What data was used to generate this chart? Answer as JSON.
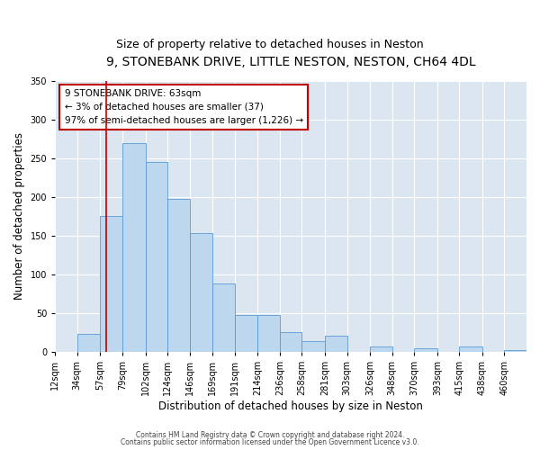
{
  "title": "9, STONEBANK DRIVE, LITTLE NESTON, NESTON, CH64 4DL",
  "subtitle": "Size of property relative to detached houses in Neston",
  "xlabel": "Distribution of detached houses by size in Neston",
  "ylabel": "Number of detached properties",
  "bar_color": "#bdd7ee",
  "bar_edge_color": "#5b9bd5",
  "bin_labels": [
    "12sqm",
    "34sqm",
    "57sqm",
    "79sqm",
    "102sqm",
    "124sqm",
    "146sqm",
    "169sqm",
    "191sqm",
    "214sqm",
    "236sqm",
    "258sqm",
    "281sqm",
    "303sqm",
    "326sqm",
    "348sqm",
    "370sqm",
    "393sqm",
    "415sqm",
    "438sqm",
    "460sqm"
  ],
  "bar_values": [
    0,
    23,
    175,
    270,
    245,
    197,
    153,
    88,
    47,
    47,
    25,
    13,
    21,
    0,
    7,
    0,
    4,
    0,
    6,
    0,
    2
  ],
  "bin_edges": [
    12,
    34,
    57,
    79,
    102,
    124,
    146,
    169,
    191,
    214,
    236,
    258,
    281,
    303,
    326,
    348,
    370,
    393,
    415,
    438,
    460,
    482
  ],
  "red_line_x": 63,
  "ylim": [
    0,
    350
  ],
  "annotation_text": "9 STONEBANK DRIVE: 63sqm\n← 3% of detached houses are smaller (37)\n97% of semi-detached houses are larger (1,226) →",
  "footer1": "Contains HM Land Registry data © Crown copyright and database right 2024.",
  "footer2": "Contains public sector information licensed under the Open Government Licence v3.0.",
  "fig_bg_color": "#ffffff",
  "plot_bg_color": "#dce6f1",
  "grid_color": "#ffffff",
  "title_fontsize": 10,
  "subtitle_fontsize": 9,
  "axis_label_fontsize": 8.5,
  "tick_fontsize": 7,
  "annotation_box_edge_color": "#c00000",
  "annotation_box_face_color": "#ffffff",
  "annotation_fontsize": 7.5
}
